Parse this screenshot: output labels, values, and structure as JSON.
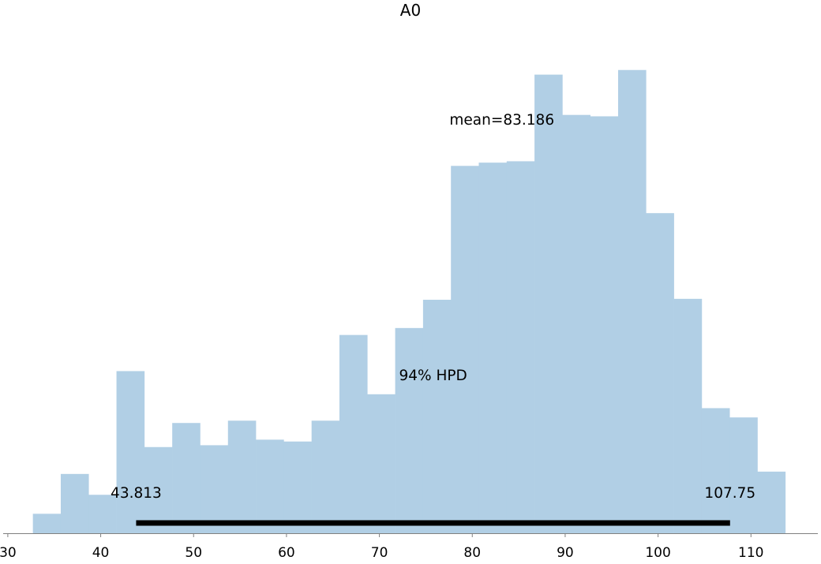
{
  "chart_data": {
    "type": "bar",
    "title": "A0",
    "xlabel": "",
    "ylabel": "",
    "bar_color": "#b1cfe5",
    "hpd_color": "#000000",
    "axis_color": "#808080",
    "bin_edges": [
      32.7,
      35.7,
      38.7,
      41.7,
      44.7,
      47.7,
      50.7,
      53.7,
      56.7,
      59.7,
      62.7,
      65.7,
      68.7,
      71.7,
      74.7,
      77.7,
      80.7,
      83.7,
      86.7,
      89.7,
      92.7,
      95.7,
      98.7,
      101.7,
      104.7,
      107.7,
      110.7,
      113.7
    ],
    "values": [
      4.2,
      12.8,
      8.3,
      35.0,
      18.6,
      23.8,
      19.0,
      24.3,
      20.2,
      19.8,
      24.3,
      42.8,
      30.0,
      44.3,
      50.4,
      79.3,
      80.0,
      80.3,
      99.0,
      90.3,
      90.0,
      100.0,
      69.1,
      50.6,
      27.0,
      25.0,
      13.3
    ],
    "xlim": [
      29.5,
      117.2
    ],
    "ylim": [
      0,
      110
    ],
    "xticks": [
      30,
      40,
      50,
      60,
      70,
      80,
      90,
      100,
      110
    ],
    "mean_label": "mean=83.186",
    "mean_label_x": 83.186,
    "hpd_label": "94% HPD",
    "hpd_low": 43.813,
    "hpd_high": 107.75,
    "hpd_low_label": "43.813",
    "hpd_high_label": "107.75"
  }
}
